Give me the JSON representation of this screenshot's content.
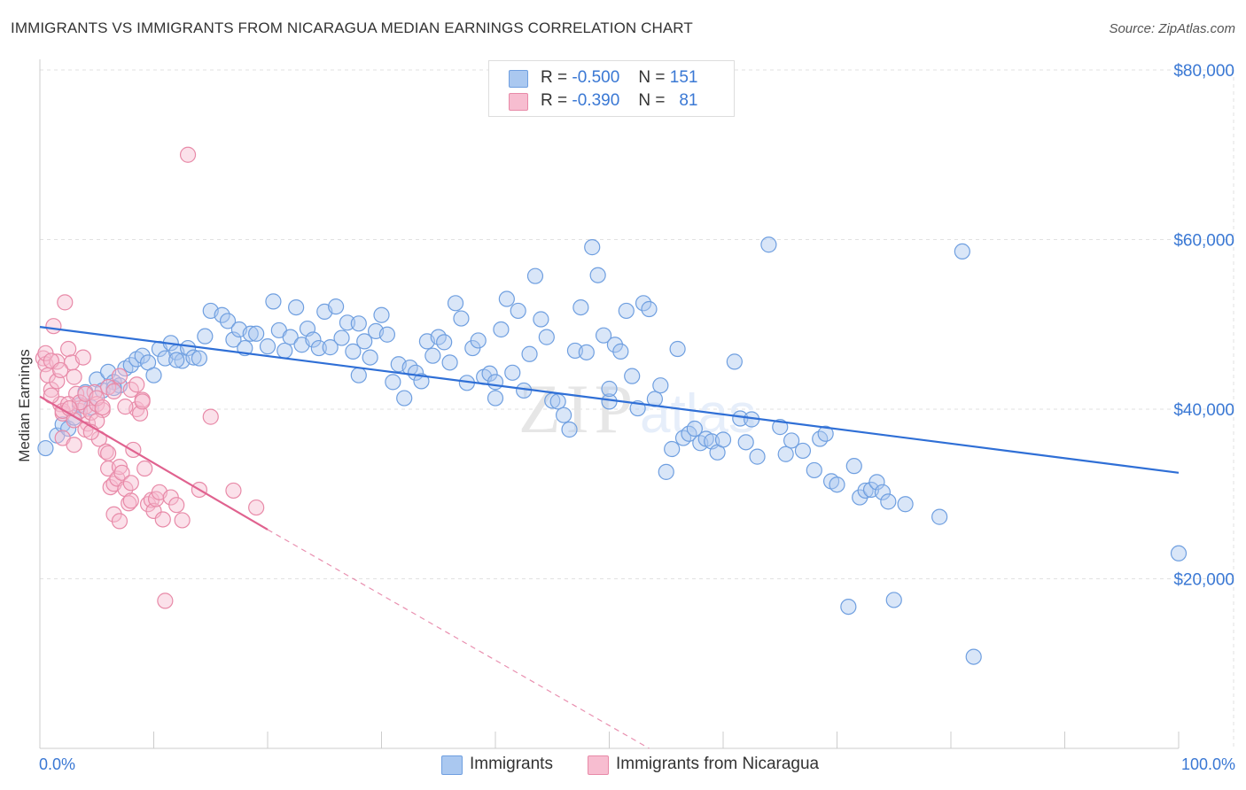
{
  "title": "IMMIGRANTS VS IMMIGRANTS FROM NICARAGUA MEDIAN EARNINGS CORRELATION CHART",
  "source": "Source: ZipAtlas.com",
  "watermark": {
    "zip": "ZIP",
    "atlas": "atlas"
  },
  "legend": {
    "rows": [
      {
        "r_label": "R =",
        "r_value": "-0.500",
        "n_label": "N =",
        "n_value": "151",
        "color": "#aac8f0",
        "border": "#6f9fe0"
      },
      {
        "r_label": "R =",
        "r_value": "-0.390",
        "n_label": "N =",
        "n_value": "81",
        "color": "#f7bdd0",
        "border": "#e88aa8"
      }
    ]
  },
  "bottom_legend": [
    {
      "label": "Immigrants",
      "color": "#aac8f0",
      "border": "#6f9fe0"
    },
    {
      "label": "Immigrants from Nicaragua",
      "color": "#f7bdd0",
      "border": "#e88aa8"
    }
  ],
  "chart_data": {
    "type": "scatter",
    "title": "IMMIGRANTS VS IMMIGRANTS FROM NICARAGUA MEDIAN EARNINGS CORRELATION CHART",
    "xlabel": "",
    "ylabel": "Median Earnings",
    "xlim": [
      0,
      100
    ],
    "ylim": [
      0,
      80000
    ],
    "x_tick_labels": [
      "0.0%",
      "100.0%"
    ],
    "y_ticks": [
      20000,
      40000,
      60000,
      80000
    ],
    "y_tick_labels": [
      "$20,000",
      "$40,000",
      "$60,000",
      "$80,000"
    ],
    "grid": "horizontal dashed",
    "series": [
      {
        "name": "Immigrants",
        "color": "#6f9fe0",
        "fill": "rgba(170,200,240,0.45)",
        "trend": {
          "x": [
            0,
            100
          ],
          "y": [
            49700,
            32500
          ],
          "style": "solid",
          "color": "#2f6fd6"
        },
        "points": [
          [
            0.5,
            35400
          ],
          [
            1.5,
            36900
          ],
          [
            2,
            38200
          ],
          [
            2.5,
            37700
          ],
          [
            3,
            39000
          ],
          [
            3.5,
            40500
          ],
          [
            4,
            42000
          ],
          [
            4.5,
            40200
          ],
          [
            5,
            43500
          ],
          [
            5.5,
            42200
          ],
          [
            6,
            44400
          ],
          [
            6.5,
            43200
          ],
          [
            7,
            42800
          ],
          [
            7.5,
            44800
          ],
          [
            8,
            45200
          ],
          [
            8.5,
            45900
          ],
          [
            9,
            46300
          ],
          [
            9.5,
            45500
          ],
          [
            10,
            44000
          ],
          [
            10.5,
            47100
          ],
          [
            11,
            46000
          ],
          [
            11.5,
            47800
          ],
          [
            12,
            46700
          ],
          [
            12.5,
            45700
          ],
          [
            13,
            47200
          ],
          [
            13.5,
            46100
          ],
          [
            14,
            46000
          ],
          [
            14.5,
            48600
          ],
          [
            15,
            51600
          ],
          [
            16,
            51100
          ],
          [
            16.5,
            50400
          ],
          [
            17,
            48200
          ],
          [
            17.5,
            49400
          ],
          [
            18,
            47200
          ],
          [
            18.5,
            48900
          ],
          [
            19,
            48900
          ],
          [
            20,
            47400
          ],
          [
            20.5,
            52700
          ],
          [
            21,
            49300
          ],
          [
            21.5,
            46900
          ],
          [
            22,
            48500
          ],
          [
            22.5,
            52000
          ],
          [
            23,
            47600
          ],
          [
            23.5,
            49500
          ],
          [
            24,
            48200
          ],
          [
            24.5,
            47200
          ],
          [
            25,
            51500
          ],
          [
            25.5,
            47300
          ],
          [
            26,
            52100
          ],
          [
            26.5,
            48400
          ],
          [
            27,
            50200
          ],
          [
            27.5,
            46800
          ],
          [
            28,
            50100
          ],
          [
            28.5,
            48000
          ],
          [
            29,
            46100
          ],
          [
            29.5,
            49200
          ],
          [
            30,
            51100
          ],
          [
            30.5,
            48800
          ],
          [
            31,
            43200
          ],
          [
            31.5,
            45300
          ],
          [
            32,
            41300
          ],
          [
            32.5,
            44900
          ],
          [
            33,
            44300
          ],
          [
            33.5,
            43300
          ],
          [
            34,
            48000
          ],
          [
            34.5,
            46300
          ],
          [
            35,
            48500
          ],
          [
            35.5,
            47900
          ],
          [
            36,
            45500
          ],
          [
            36.5,
            52500
          ],
          [
            37,
            50700
          ],
          [
            37.5,
            43100
          ],
          [
            38,
            47200
          ],
          [
            38.5,
            48100
          ],
          [
            39,
            43800
          ],
          [
            39.5,
            44200
          ],
          [
            40,
            41300
          ],
          [
            40.5,
            49400
          ],
          [
            41,
            53000
          ],
          [
            41.5,
            44300
          ],
          [
            42,
            51600
          ],
          [
            42.5,
            42200
          ],
          [
            43,
            46500
          ],
          [
            43.5,
            55700
          ],
          [
            44,
            50600
          ],
          [
            44.5,
            48500
          ],
          [
            45,
            41000
          ],
          [
            45.5,
            40900
          ],
          [
            46,
            39300
          ],
          [
            46.5,
            37600
          ],
          [
            47,
            46900
          ],
          [
            47.5,
            52000
          ],
          [
            48,
            46700
          ],
          [
            48.5,
            59100
          ],
          [
            49,
            55800
          ],
          [
            49.5,
            48700
          ],
          [
            50,
            40900
          ],
          [
            50.5,
            47600
          ],
          [
            51,
            46800
          ],
          [
            51.5,
            51600
          ],
          [
            52,
            43900
          ],
          [
            52.5,
            40100
          ],
          [
            53,
            52500
          ],
          [
            53.5,
            51800
          ],
          [
            54,
            41200
          ],
          [
            54.5,
            42800
          ],
          [
            55,
            32600
          ],
          [
            55.5,
            35300
          ],
          [
            56,
            47100
          ],
          [
            56.5,
            36600
          ],
          [
            57,
            37100
          ],
          [
            57.5,
            37700
          ],
          [
            58,
            36000
          ],
          [
            58.5,
            36500
          ],
          [
            59,
            36200
          ],
          [
            59.5,
            34900
          ],
          [
            60,
            36400
          ],
          [
            61,
            45600
          ],
          [
            61.5,
            38900
          ],
          [
            62,
            36100
          ],
          [
            62.5,
            38800
          ],
          [
            63,
            34400
          ],
          [
            64,
            59400
          ],
          [
            65,
            37900
          ],
          [
            65.5,
            34700
          ],
          [
            66,
            36300
          ],
          [
            67,
            35100
          ],
          [
            68,
            32800
          ],
          [
            68.5,
            36500
          ],
          [
            69,
            37100
          ],
          [
            69.5,
            31500
          ],
          [
            70,
            31100
          ],
          [
            71,
            16700
          ],
          [
            71.5,
            33300
          ],
          [
            72,
            29600
          ],
          [
            72.5,
            30400
          ],
          [
            73,
            30500
          ],
          [
            73.5,
            31400
          ],
          [
            74,
            30200
          ],
          [
            74.5,
            29100
          ],
          [
            75,
            17500
          ],
          [
            76,
            28800
          ],
          [
            79,
            27300
          ],
          [
            81,
            58600
          ],
          [
            82,
            10800
          ],
          [
            100,
            23000
          ],
          [
            6.5,
            42500
          ],
          [
            12,
            45800
          ],
          [
            28,
            44000
          ],
          [
            40,
            43200
          ],
          [
            50,
            42400
          ]
        ]
      },
      {
        "name": "Immigrants from Nicaragua",
        "color": "#e88aa8",
        "fill": "rgba(247,189,208,0.45)",
        "trend": {
          "x": [
            0,
            20
          ],
          "y": [
            41500,
            25800
          ],
          "style": "solid",
          "color": "#e0628f",
          "extension": {
            "x": [
              20,
              53.5
            ],
            "y": [
              25800,
              0
            ],
            "style": "dashed"
          }
        },
        "points": [
          [
            0.3,
            46000
          ],
          [
            0.5,
            45300
          ],
          [
            0.7,
            44000
          ],
          [
            1,
            42300
          ],
          [
            1.2,
            49800
          ],
          [
            1.5,
            45600
          ],
          [
            1.8,
            40600
          ],
          [
            2,
            39500
          ],
          [
            2.2,
            52600
          ],
          [
            2.5,
            47100
          ],
          [
            2.8,
            45500
          ],
          [
            3,
            43800
          ],
          [
            3.2,
            41800
          ],
          [
            3.5,
            39800
          ],
          [
            3.8,
            46100
          ],
          [
            4,
            40300
          ],
          [
            4.2,
            38300
          ],
          [
            4.5,
            39600
          ],
          [
            4.8,
            42000
          ],
          [
            5,
            40600
          ],
          [
            5.2,
            36500
          ],
          [
            5.5,
            39900
          ],
          [
            5.8,
            35000
          ],
          [
            6,
            33000
          ],
          [
            6.2,
            30800
          ],
          [
            6.5,
            31200
          ],
          [
            6.8,
            31800
          ],
          [
            7,
            33200
          ],
          [
            7.2,
            32500
          ],
          [
            7.5,
            30600
          ],
          [
            7.8,
            28900
          ],
          [
            8,
            29200
          ],
          [
            8.2,
            35200
          ],
          [
            8.5,
            40000
          ],
          [
            8.8,
            39500
          ],
          [
            9,
            41100
          ],
          [
            9.2,
            33000
          ],
          [
            9.5,
            28800
          ],
          [
            9.8,
            29300
          ],
          [
            10,
            28000
          ],
          [
            10.2,
            29400
          ],
          [
            10.5,
            30200
          ],
          [
            10.8,
            27000
          ],
          [
            11,
            17400
          ],
          [
            11.5,
            29600
          ],
          [
            12,
            28700
          ],
          [
            12.5,
            26900
          ],
          [
            13,
            70000
          ],
          [
            14,
            30500
          ],
          [
            15,
            39100
          ],
          [
            17,
            30400
          ],
          [
            19,
            28400
          ],
          [
            2,
            36600
          ],
          [
            3,
            35800
          ],
          [
            4,
            37600
          ],
          [
            5,
            38600
          ],
          [
            6,
            34800
          ],
          [
            6.5,
            27600
          ],
          [
            7,
            26800
          ],
          [
            8,
            31300
          ],
          [
            1,
            41600
          ],
          [
            1.5,
            43300
          ],
          [
            2,
            39800
          ],
          [
            2.5,
            40600
          ],
          [
            3,
            38700
          ],
          [
            3.5,
            40800
          ],
          [
            4,
            41800
          ],
          [
            4.5,
            37300
          ],
          [
            5,
            41300
          ],
          [
            5.5,
            40200
          ],
          [
            6,
            42600
          ],
          [
            6.5,
            42100
          ],
          [
            7,
            43900
          ],
          [
            7.5,
            40300
          ],
          [
            8,
            42300
          ],
          [
            8.5,
            42900
          ],
          [
            9,
            40900
          ],
          [
            0.5,
            46600
          ],
          [
            1,
            45700
          ],
          [
            1.8,
            44600
          ],
          [
            2.6,
            40100
          ]
        ]
      }
    ]
  }
}
